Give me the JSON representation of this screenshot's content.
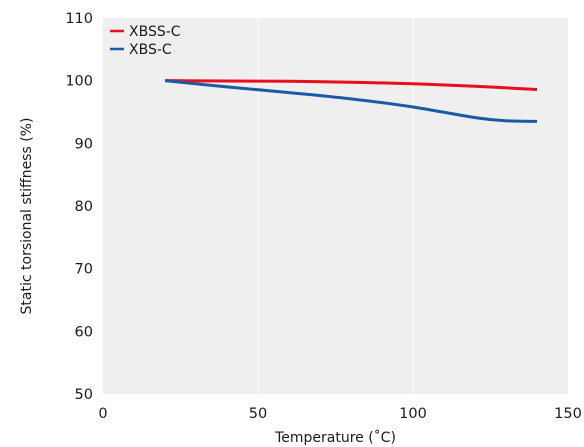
{
  "chart_data": {
    "type": "line",
    "xlabel": "Temperature (˚C)",
    "ylabel": "Static torsional stiffness (%)",
    "xlim": [
      0,
      150
    ],
    "ylim": [
      50,
      110
    ],
    "xticks": [
      "0",
      "50",
      "100",
      "150"
    ],
    "yticks": [
      "50",
      "60",
      "70",
      "80",
      "90",
      "100",
      "110"
    ],
    "grid": true,
    "legend_position": "top-left",
    "series": [
      {
        "name": "XBSS-C",
        "color": "#e8101e",
        "x": [
          20,
          40,
          60,
          80,
          100,
          120,
          140
        ],
        "y": [
          100.0,
          99.95,
          99.9,
          99.75,
          99.5,
          99.1,
          98.6
        ]
      },
      {
        "name": "XBS-C",
        "color": "#1a5aa6",
        "x": [
          20,
          40,
          60,
          80,
          100,
          120,
          130,
          140
        ],
        "y": [
          100.0,
          99.0,
          98.1,
          97.1,
          95.8,
          94.1,
          93.6,
          93.5
        ]
      }
    ]
  },
  "colors": {
    "plot_background": "#efefef",
    "grid": "#ffffff"
  }
}
